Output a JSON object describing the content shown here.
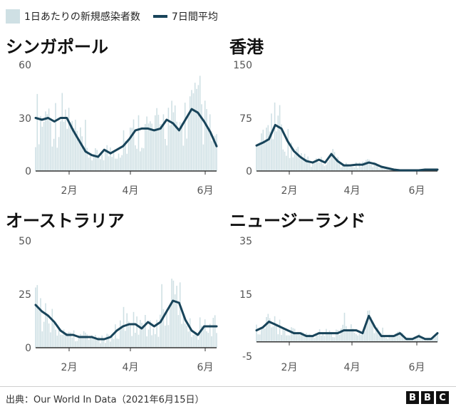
{
  "legend": {
    "bars_label": "1日あたりの新規感染者数",
    "line_label": "7日間平均"
  },
  "colors": {
    "bars": "#cfe0e4",
    "line": "#18445a",
    "zero_line": "#333333"
  },
  "footer": {
    "source": "出典：Our World In Data（2021年6月15日）",
    "logo": [
      "B",
      "B",
      "C"
    ]
  },
  "chart_data": [
    {
      "type": "bar",
      "title": "シンガポール",
      "yticks": [
        "60",
        "30",
        "0"
      ],
      "ytick_values": [
        60,
        30,
        0
      ],
      "xticks": [
        "2月",
        "4月",
        "6月"
      ],
      "ylim": [
        0,
        60
      ],
      "series_line_name": "7日間平均",
      "series_line": [
        {
          "x": 0,
          "y": 30
        },
        {
          "x": 5,
          "y": 29
        },
        {
          "x": 10,
          "y": 30
        },
        {
          "x": 15,
          "y": 28
        },
        {
          "x": 20,
          "y": 30
        },
        {
          "x": 25,
          "y": 30
        },
        {
          "x": 30,
          "y": 23
        },
        {
          "x": 35,
          "y": 17
        },
        {
          "x": 40,
          "y": 11
        },
        {
          "x": 45,
          "y": 9
        },
        {
          "x": 50,
          "y": 8
        },
        {
          "x": 55,
          "y": 12
        },
        {
          "x": 60,
          "y": 10
        },
        {
          "x": 65,
          "y": 12
        },
        {
          "x": 70,
          "y": 14
        },
        {
          "x": 75,
          "y": 18
        },
        {
          "x": 80,
          "y": 23
        },
        {
          "x": 85,
          "y": 24
        },
        {
          "x": 90,
          "y": 24
        },
        {
          "x": 95,
          "y": 23
        },
        {
          "x": 100,
          "y": 24
        },
        {
          "x": 105,
          "y": 29
        },
        {
          "x": 110,
          "y": 27
        },
        {
          "x": 115,
          "y": 23
        },
        {
          "x": 120,
          "y": 29
        },
        {
          "x": 125,
          "y": 35
        },
        {
          "x": 130,
          "y": 33
        },
        {
          "x": 135,
          "y": 28
        },
        {
          "x": 140,
          "y": 22
        },
        {
          "x": 145,
          "y": 14
        }
      ]
    },
    {
      "type": "bar",
      "title": "香港",
      "yticks": [
        "150",
        "75",
        "0"
      ],
      "ytick_values": [
        150,
        75,
        0
      ],
      "xticks": [
        "2月",
        "4月",
        "6月"
      ],
      "ylim": [
        0,
        150
      ],
      "series_line_name": "7日間平均",
      "series_line": [
        {
          "x": 0,
          "y": 36
        },
        {
          "x": 5,
          "y": 40
        },
        {
          "x": 10,
          "y": 45
        },
        {
          "x": 15,
          "y": 65
        },
        {
          "x": 20,
          "y": 60
        },
        {
          "x": 25,
          "y": 42
        },
        {
          "x": 30,
          "y": 28
        },
        {
          "x": 35,
          "y": 20
        },
        {
          "x": 40,
          "y": 14
        },
        {
          "x": 45,
          "y": 12
        },
        {
          "x": 50,
          "y": 16
        },
        {
          "x": 55,
          "y": 12
        },
        {
          "x": 60,
          "y": 24
        },
        {
          "x": 65,
          "y": 14
        },
        {
          "x": 70,
          "y": 8
        },
        {
          "x": 75,
          "y": 8
        },
        {
          "x": 80,
          "y": 9
        },
        {
          "x": 85,
          "y": 9
        },
        {
          "x": 90,
          "y": 12
        },
        {
          "x": 95,
          "y": 10
        },
        {
          "x": 100,
          "y": 6
        },
        {
          "x": 105,
          "y": 4
        },
        {
          "x": 110,
          "y": 2
        },
        {
          "x": 115,
          "y": 1
        },
        {
          "x": 120,
          "y": 1
        },
        {
          "x": 125,
          "y": 1
        },
        {
          "x": 130,
          "y": 1
        },
        {
          "x": 135,
          "y": 2
        },
        {
          "x": 140,
          "y": 2
        },
        {
          "x": 145,
          "y": 2
        }
      ]
    },
    {
      "type": "bar",
      "title": "オーストラリア",
      "yticks": [
        "50",
        "25",
        "0"
      ],
      "ytick_values": [
        50,
        25,
        0
      ],
      "xticks": [
        "2月",
        "4月",
        "6月"
      ],
      "ylim": [
        0,
        50
      ],
      "series_line_name": "7日間平均",
      "series_line": [
        {
          "x": 0,
          "y": 20
        },
        {
          "x": 5,
          "y": 17
        },
        {
          "x": 10,
          "y": 15
        },
        {
          "x": 15,
          "y": 12
        },
        {
          "x": 20,
          "y": 8
        },
        {
          "x": 25,
          "y": 6
        },
        {
          "x": 30,
          "y": 6
        },
        {
          "x": 35,
          "y": 5
        },
        {
          "x": 40,
          "y": 5
        },
        {
          "x": 45,
          "y": 5
        },
        {
          "x": 50,
          "y": 4
        },
        {
          "x": 55,
          "y": 4
        },
        {
          "x": 60,
          "y": 5
        },
        {
          "x": 65,
          "y": 8
        },
        {
          "x": 70,
          "y": 10
        },
        {
          "x": 75,
          "y": 11
        },
        {
          "x": 80,
          "y": 11
        },
        {
          "x": 85,
          "y": 9
        },
        {
          "x": 90,
          "y": 12
        },
        {
          "x": 95,
          "y": 10
        },
        {
          "x": 100,
          "y": 12
        },
        {
          "x": 105,
          "y": 17
        },
        {
          "x": 110,
          "y": 22
        },
        {
          "x": 115,
          "y": 21
        },
        {
          "x": 120,
          "y": 13
        },
        {
          "x": 125,
          "y": 8
        },
        {
          "x": 130,
          "y": 6
        },
        {
          "x": 135,
          "y": 10
        },
        {
          "x": 140,
          "y": 10
        },
        {
          "x": 145,
          "y": 10
        }
      ]
    },
    {
      "type": "bar",
      "title": "ニュージーランド",
      "yticks": [
        "35",
        "15",
        "-5"
      ],
      "ytick_values": [
        35,
        15,
        -5
      ],
      "xticks": [
        "2月",
        "4月",
        "6月"
      ],
      "ylim": [
        -5,
        35
      ],
      "series_line_name": "7日間平均",
      "series_line": [
        {
          "x": 0,
          "y": 4
        },
        {
          "x": 5,
          "y": 5
        },
        {
          "x": 10,
          "y": 7
        },
        {
          "x": 15,
          "y": 6
        },
        {
          "x": 20,
          "y": 5
        },
        {
          "x": 25,
          "y": 4
        },
        {
          "x": 30,
          "y": 3
        },
        {
          "x": 35,
          "y": 3
        },
        {
          "x": 40,
          "y": 2
        },
        {
          "x": 45,
          "y": 2
        },
        {
          "x": 50,
          "y": 3
        },
        {
          "x": 55,
          "y": 3
        },
        {
          "x": 60,
          "y": 3
        },
        {
          "x": 65,
          "y": 3
        },
        {
          "x": 70,
          "y": 4
        },
        {
          "x": 75,
          "y": 4
        },
        {
          "x": 80,
          "y": 4
        },
        {
          "x": 85,
          "y": 3
        },
        {
          "x": 90,
          "y": 9
        },
        {
          "x": 95,
          "y": 5
        },
        {
          "x": 100,
          "y": 2
        },
        {
          "x": 105,
          "y": 2
        },
        {
          "x": 110,
          "y": 2
        },
        {
          "x": 115,
          "y": 3
        },
        {
          "x": 120,
          "y": 1
        },
        {
          "x": 125,
          "y": 1
        },
        {
          "x": 130,
          "y": 2
        },
        {
          "x": 135,
          "y": 1
        },
        {
          "x": 140,
          "y": 1
        },
        {
          "x": 145,
          "y": 3
        }
      ]
    }
  ]
}
